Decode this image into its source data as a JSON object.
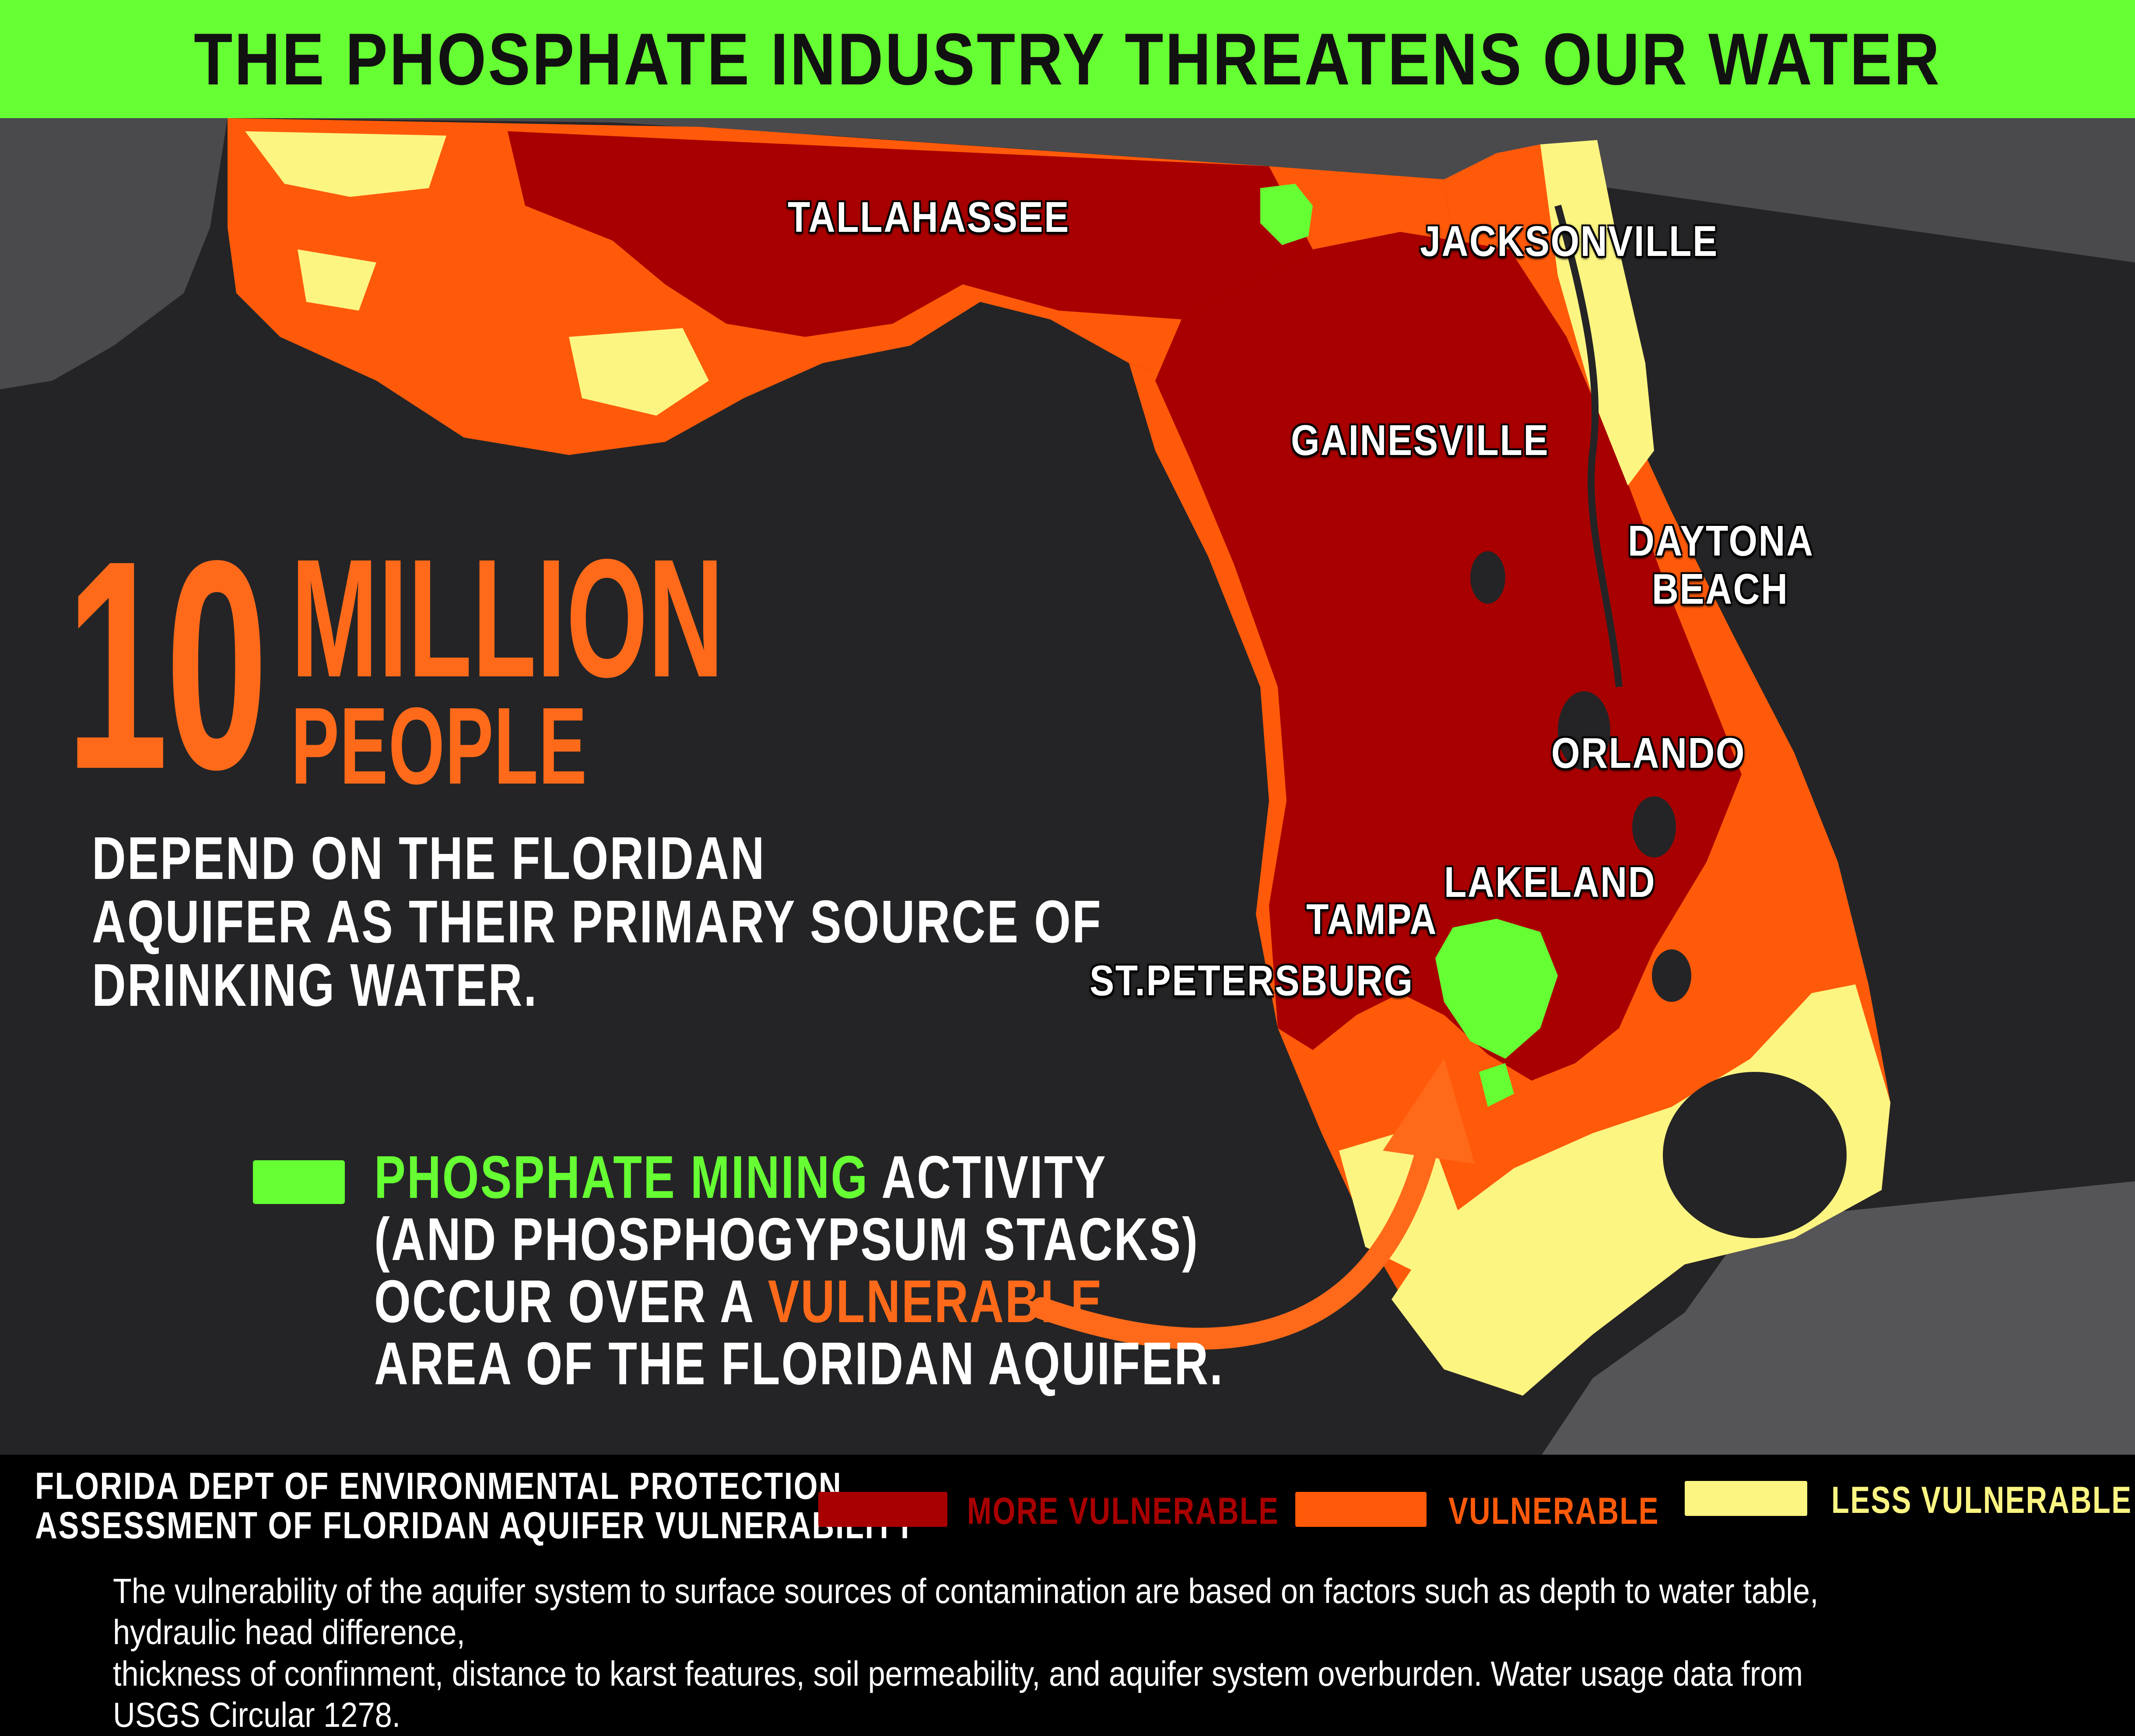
{
  "title": "THE PHOSPHATE INDUSTRY THREATENS OUR WATER",
  "colors": {
    "title_bar": "#66ff33",
    "background": "#242426",
    "more_vulnerable": "#a80000",
    "vulnerable": "#ff5a0a",
    "less_vulnerable": "#fdf582",
    "mining": "#66ff33",
    "accent_orange": "#ff6a1a"
  },
  "cities": {
    "tallahassee": "TALLAHASSEE",
    "jacksonville": "JACKSONVILLE",
    "gainesville": "GAINESVILLE",
    "daytona_1": "DAYTONA",
    "daytona_2": "BEACH",
    "orlando": "ORLANDO",
    "lakeland": "LAKELAND",
    "tampa": "TAMPA",
    "st_petersburg": "ST.PETERSBURG"
  },
  "headline": {
    "number": "10",
    "unit": "MILLION",
    "people": "PEOPLE",
    "line1": "DEPEND ON THE FLORIDAN",
    "line2": "AQUIFER AS THEIR PRIMARY SOURCE OF",
    "line3": "DRINKING WATER."
  },
  "mining": {
    "green_part": "PHOSPHATE MINING",
    "line1_rest": " ACTIVITY",
    "line2": "(AND PHOSPHOGYPSUM STACKS)",
    "line3_pre": "OCCUR OVER A ",
    "line3_orange": "VULNERABLE",
    "line4": "AREA OF THE FLORIDAN AQUIFER."
  },
  "source": {
    "line1": "FLORIDA DEPT OF  ENVIRONMENTAL PROTECTION",
    "line2": "ASSESSMENT OF FLORIDAN AQUIFER VULNERABILITY"
  },
  "legend": {
    "more": "MORE VULNERABLE",
    "vulnerable": "VULNERABLE",
    "less": "LESS VULNERABLE"
  },
  "note": "The vulnerability of the aquifer system to surface sources of contamination are based on factors such as depth to water table, hydraulic head difference,\nthickness of confinment, distance to karst features, soil permeability, and aquifer system overburden. Water usage data from USGS Circular 1278."
}
